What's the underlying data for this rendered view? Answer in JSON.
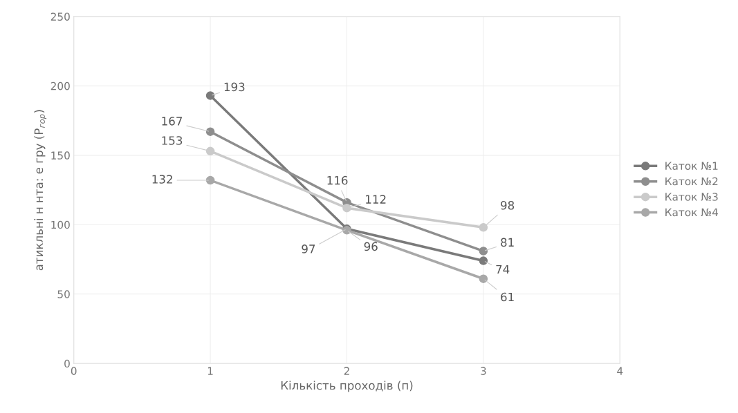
{
  "chart_data": {
    "type": "line",
    "xlabel": "Кількість проходів (п)",
    "ylabel": "атикльні н нта: е гру (P$_{гор}$)",
    "x": [
      1,
      2,
      3
    ],
    "series": [
      {
        "name": "Каток №1",
        "color": "#7a7a7a",
        "values": [
          193,
          97,
          74
        ]
      },
      {
        "name": "Каток №2",
        "color": "#8e8e8e",
        "values": [
          167,
          116,
          81
        ]
      },
      {
        "name": "Каток №3",
        "color": "#cacaca",
        "values": [
          153,
          112,
          98
        ]
      },
      {
        "name": "Каток №4",
        "color": "#a8a8a8",
        "values": [
          132,
          96,
          61
        ]
      }
    ],
    "xlim": [
      0,
      4
    ],
    "xticks": [
      0,
      1,
      2,
      3,
      4
    ],
    "ylim": [
      0,
      250
    ],
    "yticks": [
      0,
      50,
      100,
      150,
      200,
      250
    ],
    "grid": true,
    "legend": "right",
    "marker": "circle",
    "line_style": "solid",
    "data_labels": true
  }
}
